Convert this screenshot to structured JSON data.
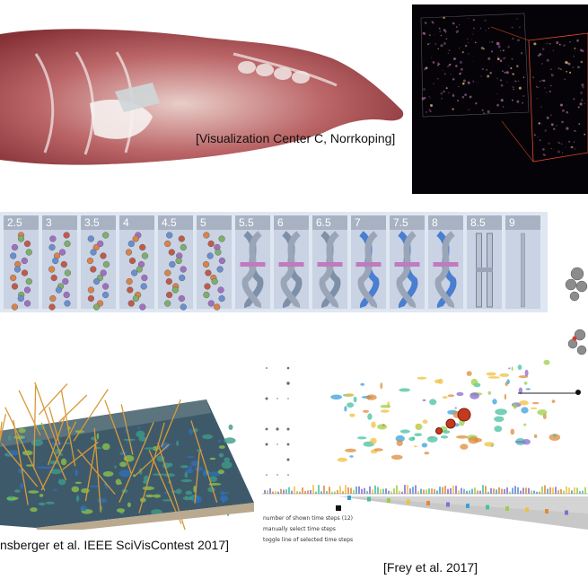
{
  "captions": {
    "top": "[Visualization Center C, Norrkoping]",
    "bottom_left": "nsberger et al. IEEE SciVisContest 2017]",
    "bottom_right": "[Frey et al. 2017]"
  },
  "strip": {
    "labels": [
      "2.5",
      "3",
      "3.5",
      "4",
      "4.5",
      "5",
      "5.5",
      "6",
      "6.5",
      "7",
      "7.5",
      "8",
      "8.5",
      "9"
    ]
  },
  "controls": {
    "shown_steps": "number of shown time steps (12)",
    "manual_select": "manually select time steps",
    "toggle_line": "toggle line of selected time steps"
  }
}
